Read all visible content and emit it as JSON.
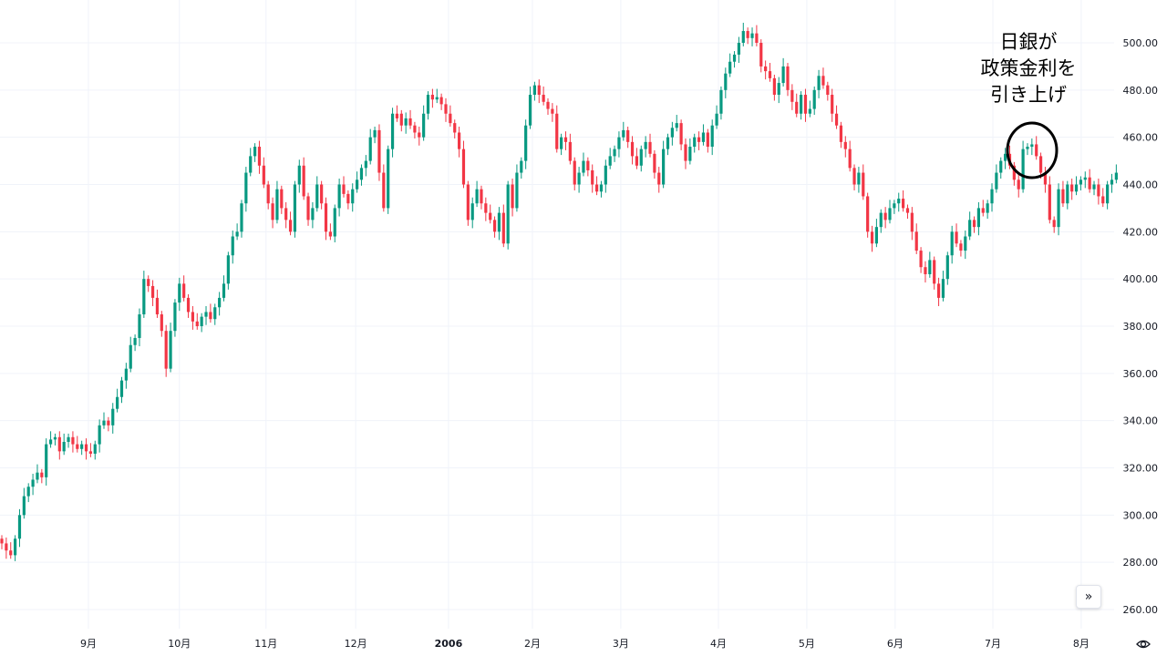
{
  "chart_data": {
    "type": "candlestick",
    "title": "",
    "xlabel": "",
    "ylabel": "",
    "ylim": [
      260,
      500
    ],
    "y_ticks": [
      "260.00",
      "280.00",
      "300.00",
      "320.00",
      "340.00",
      "360.00",
      "380.00",
      "400.00",
      "420.00",
      "440.00",
      "460.00",
      "480.00",
      "500.00"
    ],
    "x_ticks": [
      {
        "label": "9月",
        "index": 19.5,
        "bold": false
      },
      {
        "label": "10月",
        "index": 40,
        "bold": false
      },
      {
        "label": "11月",
        "index": 59.5,
        "bold": false
      },
      {
        "label": "12月",
        "index": 79.7,
        "bold": false
      },
      {
        "label": "2006",
        "index": 100.6,
        "bold": true
      },
      {
        "label": "2月",
        "index": 119.5,
        "bold": false
      },
      {
        "label": "3月",
        "index": 139.4,
        "bold": false
      },
      {
        "label": "4月",
        "index": 161.4,
        "bold": false
      },
      {
        "label": "5月",
        "index": 181.3,
        "bold": false
      },
      {
        "label": "6月",
        "index": 201.2,
        "bold": false
      },
      {
        "label": "7月",
        "index": 223.2,
        "bold": false
      },
      {
        "label": "8月",
        "index": 243.1,
        "bold": false
      }
    ],
    "colors": {
      "up": "#089981",
      "down": "#F23645",
      "grid": "#f0f3fa"
    },
    "grid": true,
    "open": [
      290,
      288,
      285,
      283,
      290,
      300,
      308,
      312,
      315,
      318,
      316,
      330,
      332,
      333,
      327,
      331,
      333,
      330,
      328,
      330,
      327,
      326,
      330,
      338,
      340,
      338,
      345,
      350,
      357,
      362,
      372,
      375,
      385,
      400,
      397,
      392,
      385,
      378,
      362,
      378,
      390,
      398,
      392,
      386,
      382,
      380,
      384,
      386,
      383,
      388,
      392,
      398,
      410,
      418,
      420,
      432,
      445,
      452,
      456,
      448,
      440,
      432,
      425,
      438,
      430,
      425,
      420,
      440,
      448,
      435,
      425,
      430,
      440,
      432,
      420,
      418,
      430,
      440,
      436,
      432,
      438,
      442,
      447,
      450,
      460,
      463,
      445,
      430,
      455,
      470,
      470,
      465,
      468,
      465,
      462,
      460,
      470,
      478,
      476,
      477,
      474,
      470,
      466,
      462,
      455,
      440,
      425,
      432,
      438,
      432,
      428,
      425,
      420,
      428,
      415,
      440,
      430,
      445,
      450,
      465,
      478,
      482,
      478,
      475,
      472,
      470,
      455,
      460,
      458,
      450,
      440,
      445,
      450,
      446,
      440,
      437,
      440,
      448,
      452,
      455,
      460,
      463,
      458,
      452,
      448,
      455,
      458,
      453,
      445,
      440,
      455,
      460,
      464,
      466,
      457,
      450,
      456,
      460,
      458,
      462,
      456,
      465,
      470,
      480,
      487,
      492,
      495,
      500,
      505,
      502,
      504,
      500,
      490,
      488,
      485,
      478,
      483,
      490,
      480,
      475,
      470,
      478,
      470,
      472,
      480,
      486,
      482,
      478,
      470,
      465,
      458,
      455,
      447,
      440,
      445,
      435,
      420,
      415,
      422,
      428,
      425,
      430,
      432,
      434,
      430,
      428,
      420,
      412,
      405,
      402,
      408,
      398,
      392,
      400,
      410,
      420,
      415,
      412,
      418,
      425,
      422,
      430,
      428,
      432,
      438,
      445,
      450,
      453,
      448,
      442,
      438,
      455,
      456,
      457,
      452,
      445,
      440,
      425,
      422,
      438,
      432,
      440,
      437,
      440,
      442,
      443,
      438,
      440,
      435,
      432,
      440,
      442
    ],
    "close": [
      288,
      285,
      283,
      290,
      300,
      308,
      312,
      315,
      318,
      316,
      330,
      332,
      333,
      327,
      331,
      333,
      330,
      328,
      330,
      327,
      326,
      330,
      338,
      340,
      338,
      345,
      350,
      357,
      362,
      372,
      375,
      385,
      400,
      397,
      392,
      385,
      378,
      362,
      378,
      390,
      398,
      392,
      386,
      382,
      380,
      384,
      386,
      383,
      388,
      392,
      398,
      410,
      418,
      420,
      432,
      445,
      452,
      456,
      448,
      440,
      432,
      425,
      438,
      430,
      425,
      420,
      440,
      448,
      435,
      425,
      430,
      440,
      432,
      420,
      418,
      430,
      440,
      436,
      432,
      438,
      442,
      447,
      450,
      460,
      463,
      445,
      430,
      455,
      470,
      468,
      465,
      468,
      465,
      462,
      460,
      470,
      478,
      476,
      477,
      474,
      470,
      466,
      462,
      455,
      440,
      425,
      432,
      438,
      432,
      428,
      425,
      420,
      428,
      415,
      440,
      430,
      445,
      450,
      465,
      478,
      482,
      478,
      475,
      472,
      470,
      455,
      460,
      458,
      450,
      440,
      445,
      450,
      446,
      440,
      437,
      440,
      448,
      452,
      455,
      460,
      463,
      458,
      452,
      448,
      455,
      458,
      453,
      445,
      440,
      455,
      460,
      464,
      466,
      457,
      450,
      456,
      460,
      458,
      462,
      456,
      465,
      470,
      480,
      487,
      492,
      495,
      500,
      505,
      502,
      504,
      500,
      490,
      488,
      485,
      478,
      483,
      490,
      480,
      475,
      470,
      478,
      470,
      472,
      480,
      486,
      482,
      478,
      470,
      465,
      458,
      455,
      447,
      440,
      445,
      435,
      420,
      415,
      422,
      428,
      425,
      430,
      432,
      434,
      430,
      428,
      420,
      412,
      405,
      402,
      408,
      398,
      392,
      400,
      410,
      420,
      415,
      412,
      418,
      425,
      422,
      430,
      428,
      432,
      438,
      445,
      450,
      453,
      448,
      442,
      438,
      455,
      456,
      457,
      452,
      445,
      440,
      425,
      422,
      438,
      432,
      440,
      437,
      440,
      442,
      443,
      438,
      440,
      435,
      432,
      440,
      442,
      445
    ]
  },
  "annotation": {
    "lines": [
      "日銀が",
      "政策金利を",
      "引き上げ"
    ]
  },
  "controls": {
    "scroll_to_latest_label": "»"
  }
}
